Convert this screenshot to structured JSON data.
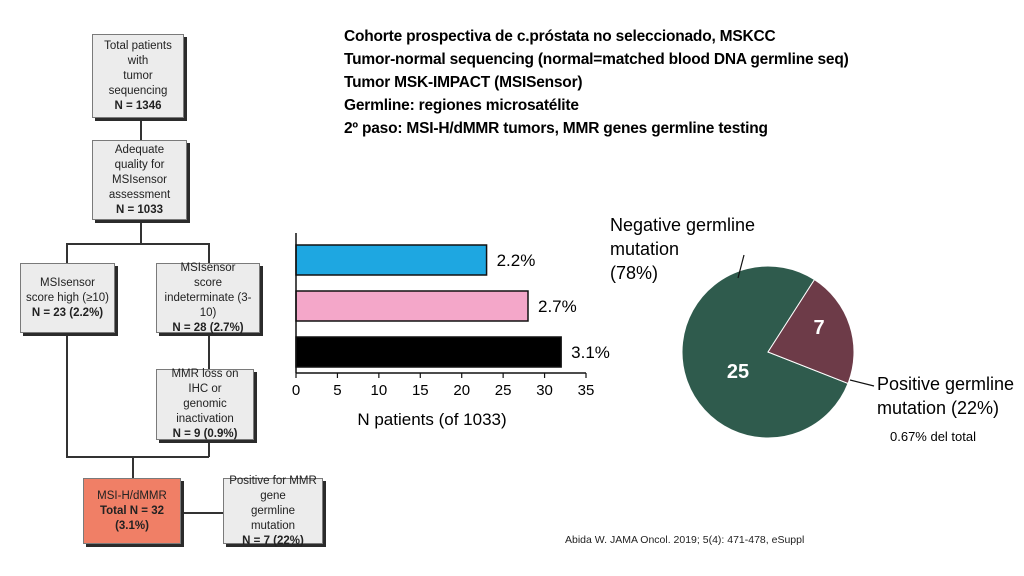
{
  "flowchart": {
    "total": {
      "lines": [
        "Total patients with",
        "tumor sequencing"
      ],
      "n": "N = 1346"
    },
    "quality": {
      "lines": [
        "Adequate quality for",
        "MSIsensor assessment"
      ],
      "n": "N = 1033"
    },
    "high": {
      "lines": [
        "MSIsensor",
        "score high (≥10)"
      ],
      "n": "N = 23 (2.2%)"
    },
    "indet": {
      "lines": [
        "MSIsensor",
        "score indeterminate (3-10)"
      ],
      "n": "N = 28 (2.7%)"
    },
    "mmr_loss": {
      "lines": [
        "MMR loss on IHC or",
        "genomic inactivation"
      ],
      "n": "N = 9 (0.9%)"
    },
    "msi_h": {
      "lines": [
        "MSI-H/dMMR"
      ],
      "n": "Total N = 32 (3.1%)"
    },
    "germline": {
      "lines": [
        "Positive for MMR gene",
        "germline mutation"
      ],
      "n": "N = 7 (22%)"
    }
  },
  "header": {
    "lines": [
      "Cohorte prospectiva de c.próstata no seleccionado, MSKCC",
      "Tumor-normal sequencing (normal=matched blood DNA germline seq)",
      "Tumor MSK-IMPACT (MSISensor)",
      "Germline: regiones microsatélite",
      "2º paso: MSI-H/dMMR tumors, MMR genes germline testing"
    ]
  },
  "chart_data": [
    {
      "type": "bar",
      "orientation": "horizontal",
      "categories": [
        "",
        "",
        ""
      ],
      "values": [
        23,
        28,
        32
      ],
      "data_labels": [
        "2.2%",
        "2.7%",
        "3.1%"
      ],
      "colors": [
        "#1ea7e1",
        "#f4a7c9",
        "#000000"
      ],
      "title": "",
      "xlabel": "N patients (of 1033)",
      "ylabel": "",
      "xlim": [
        0,
        35
      ],
      "xticks": [
        "0",
        "5",
        "10",
        "15",
        "20",
        "25",
        "30",
        "35"
      ]
    },
    {
      "type": "pie",
      "values": [
        25,
        7
      ],
      "value_labels": [
        "25",
        "7"
      ],
      "colors": [
        "#2f5b4d",
        "#6d3b48"
      ],
      "labels": [
        {
          "lines": [
            "Negative germline",
            "mutation",
            "(78%)"
          ]
        },
        {
          "lines": [
            "Positive germline",
            "mutation (22%)"
          ]
        }
      ],
      "annotation": "0.67% del total"
    }
  ],
  "citation": "Abida W. JAMA Oncol. 2019; 5(4): 471-478, eSuppl"
}
